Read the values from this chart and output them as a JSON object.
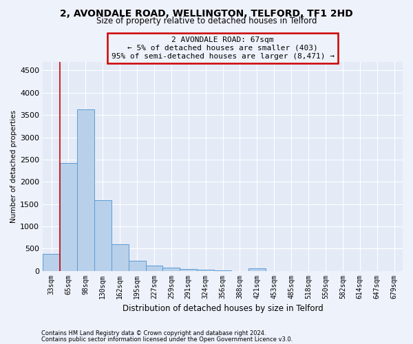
{
  "title_line1": "2, AVONDALE ROAD, WELLINGTON, TELFORD, TF1 2HD",
  "title_line2": "Size of property relative to detached houses in Telford",
  "xlabel": "Distribution of detached houses by size in Telford",
  "ylabel": "Number of detached properties",
  "categories": [
    "33sqm",
    "65sqm",
    "98sqm",
    "130sqm",
    "162sqm",
    "195sqm",
    "227sqm",
    "259sqm",
    "291sqm",
    "324sqm",
    "356sqm",
    "388sqm",
    "421sqm",
    "453sqm",
    "485sqm",
    "518sqm",
    "550sqm",
    "582sqm",
    "614sqm",
    "647sqm",
    "679sqm"
  ],
  "values": [
    380,
    2420,
    3620,
    1580,
    600,
    230,
    110,
    65,
    40,
    25,
    15,
    0,
    55,
    0,
    0,
    0,
    0,
    0,
    0,
    0,
    0
  ],
  "bar_color": "#b8d0ea",
  "bar_edge_color": "#5b9bd5",
  "annotation_line1": "2 AVONDALE ROAD: 67sqm",
  "annotation_line2": "← 5% of detached houses are smaller (403)",
  "annotation_line3": "95% of semi-detached houses are larger (8,471) →",
  "vline_color": "#cc0000",
  "box_edge_color": "#cc0000",
  "ylim_max": 4700,
  "yticks": [
    0,
    500,
    1000,
    1500,
    2000,
    2500,
    3000,
    3500,
    4000,
    4500
  ],
  "footnote1": "Contains HM Land Registry data © Crown copyright and database right 2024.",
  "footnote2": "Contains public sector information licensed under the Open Government Licence v3.0.",
  "bg_color": "#eef2fb",
  "plot_bg_color": "#e4eaf6",
  "grid_color": "#ffffff",
  "title1_fontsize": 10,
  "title2_fontsize": 8.5,
  "xlabel_fontsize": 8.5,
  "ylabel_fontsize": 7.5,
  "annot_fontsize": 8,
  "tick_fontsize": 7,
  "footnote_fontsize": 6
}
